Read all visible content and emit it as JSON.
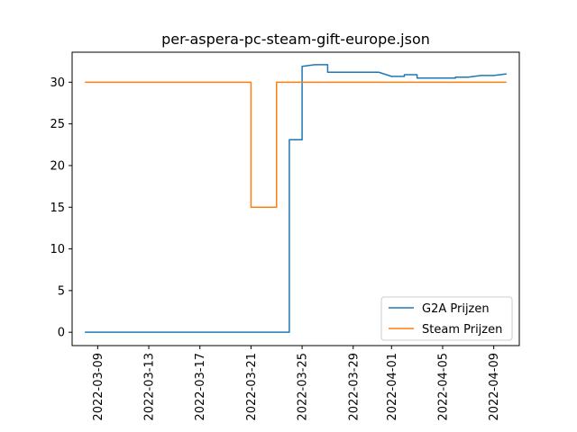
{
  "chart_data": {
    "type": "line",
    "title": "per-aspera-pc-steam-gift-europe.json",
    "xlabel": "",
    "ylabel": "",
    "x_type": "date",
    "xlim": [
      "2022-03-07",
      "2022-04-11"
    ],
    "ylim": [
      -1.6,
      33.6
    ],
    "x_ticks": [
      "2022-03-09",
      "2022-03-13",
      "2022-03-17",
      "2022-03-21",
      "2022-03-25",
      "2022-03-29",
      "2022-04-01",
      "2022-04-05",
      "2022-04-09"
    ],
    "y_ticks": [
      0,
      5,
      10,
      15,
      20,
      25,
      30
    ],
    "grid": false,
    "legend_position": "lower-right",
    "series": [
      {
        "name": "G2A Prijzen",
        "color": "#1f77b4",
        "points": [
          [
            "2022-03-08",
            0.0
          ],
          [
            "2022-03-24",
            0.0
          ],
          [
            "2022-03-24",
            23.1
          ],
          [
            "2022-03-25",
            23.1
          ],
          [
            "2022-03-25",
            31.9
          ],
          [
            "2022-03-25",
            31.9
          ],
          [
            "2022-03-26",
            32.1
          ],
          [
            "2022-03-27",
            32.1
          ],
          [
            "2022-03-27",
            31.2
          ],
          [
            "2022-03-31",
            31.2
          ],
          [
            "2022-04-01",
            30.7
          ],
          [
            "2022-04-02",
            30.7
          ],
          [
            "2022-04-02",
            30.9
          ],
          [
            "2022-04-03",
            30.9
          ],
          [
            "2022-04-03",
            30.5
          ],
          [
            "2022-04-06",
            30.5
          ],
          [
            "2022-04-06",
            30.6
          ],
          [
            "2022-04-07",
            30.6
          ],
          [
            "2022-04-08",
            30.8
          ],
          [
            "2022-04-09",
            30.8
          ],
          [
            "2022-04-10",
            31.0
          ]
        ]
      },
      {
        "name": "Steam Prijzen",
        "color": "#ff7f0e",
        "points": [
          [
            "2022-03-08",
            30.0
          ],
          [
            "2022-03-21",
            30.0
          ],
          [
            "2022-03-21",
            15.0
          ],
          [
            "2022-03-23",
            15.0
          ],
          [
            "2022-03-23",
            30.0
          ],
          [
            "2022-04-10",
            30.0
          ]
        ]
      }
    ]
  }
}
